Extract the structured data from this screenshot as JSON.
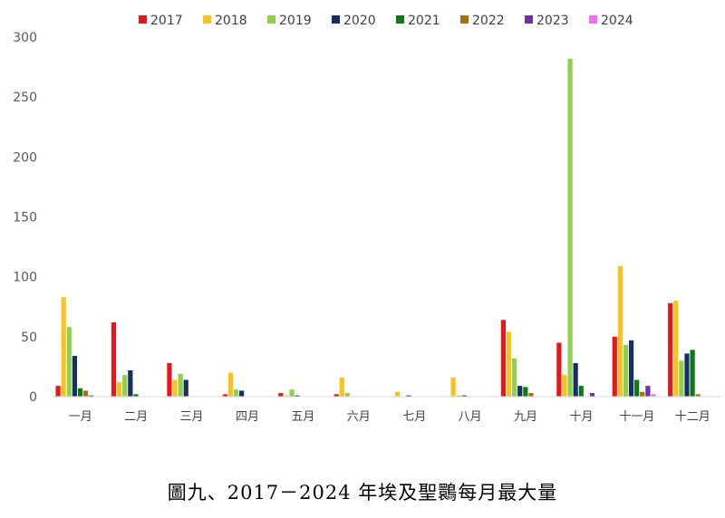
{
  "caption": "圖九、2017－2024 年埃及聖䴉每月最大量",
  "chart_data": {
    "type": "bar",
    "title": "",
    "xlabel": "",
    "ylabel": "",
    "ylim": [
      0,
      300
    ],
    "yticks": [
      0,
      50,
      100,
      150,
      200,
      250,
      300
    ],
    "legend_position": "top",
    "grid": false,
    "categories": [
      "一月",
      "二月",
      "三月",
      "四月",
      "五月",
      "六月",
      "七月",
      "八月",
      "九月",
      "十月",
      "十一月",
      "十二月"
    ],
    "series": [
      {
        "name": "2017",
        "color": "#e8151b",
        "values": [
          9,
          62,
          28,
          2,
          3,
          2,
          0,
          0,
          64,
          45,
          50,
          78
        ]
      },
      {
        "name": "2018",
        "color": "#fac31c",
        "values": [
          83,
          12,
          14,
          20,
          1,
          16,
          4,
          16,
          54,
          18,
          109,
          80
        ]
      },
      {
        "name": "2019",
        "color": "#8fd14f",
        "values": [
          58,
          18,
          19,
          6,
          6,
          3,
          0,
          1,
          32,
          282,
          43,
          30
        ]
      },
      {
        "name": "2020",
        "color": "#172e69",
        "values": [
          34,
          22,
          14,
          5,
          1,
          0,
          1,
          1,
          9,
          28,
          47,
          36
        ]
      },
      {
        "name": "2021",
        "color": "#0c7a12",
        "values": [
          7,
          2,
          0,
          0,
          0,
          0,
          0,
          0,
          8,
          9,
          14,
          39
        ]
      },
      {
        "name": "2022",
        "color": "#a07213",
        "values": [
          5,
          0,
          0,
          0,
          0,
          0,
          0,
          0,
          3,
          0,
          4,
          2
        ]
      },
      {
        "name": "2023",
        "color": "#7030a0",
        "values": [
          1,
          0,
          0,
          0,
          0,
          0,
          0,
          0,
          0,
          3,
          9,
          0
        ]
      },
      {
        "name": "2024",
        "color": "#f06ef0",
        "values": [
          0,
          0,
          0,
          0,
          0,
          0,
          0,
          0,
          0,
          0,
          2,
          0
        ]
      }
    ]
  }
}
